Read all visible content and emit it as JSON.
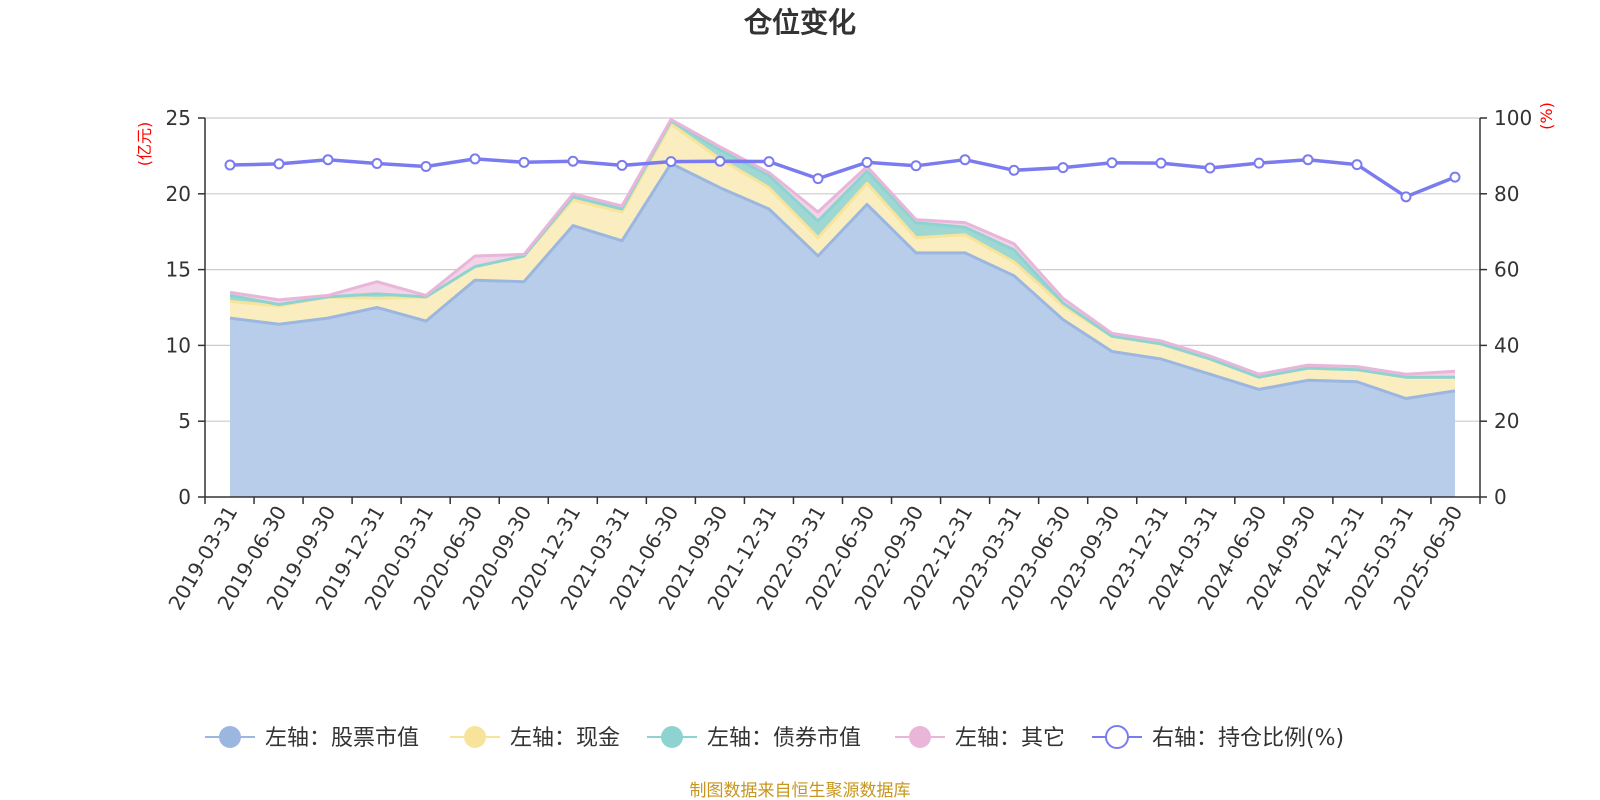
{
  "chart_data": {
    "type": "area",
    "title": "仓位变化",
    "source_text": "制图数据来自恒生聚源数据库",
    "left_axis": {
      "unit": "(亿元)",
      "ylim": [
        0,
        25
      ],
      "ticks": [
        0,
        5,
        10,
        15,
        20,
        25
      ]
    },
    "right_axis": {
      "unit": "(%)",
      "ylim": [
        0,
        100
      ],
      "ticks": [
        0,
        20,
        40,
        60,
        80,
        100
      ]
    },
    "categories": [
      "2019-03-31",
      "2019-06-30",
      "2019-09-30",
      "2019-12-31",
      "2020-03-31",
      "2020-06-30",
      "2020-09-30",
      "2020-12-31",
      "2021-03-31",
      "2021-06-30",
      "2021-09-30",
      "2021-12-31",
      "2022-03-31",
      "2022-06-30",
      "2022-09-30",
      "2022-12-31",
      "2023-03-31",
      "2023-06-30",
      "2023-09-30",
      "2023-12-31",
      "2024-03-31",
      "2024-06-30",
      "2024-09-30",
      "2024-12-31",
      "2025-03-31",
      "2025-06-30"
    ],
    "series": [
      {
        "name": "左轴：股票市值",
        "axis": "left",
        "color": "#9bb7e0",
        "fill": "#b8cdea",
        "values": [
          11.8,
          11.4,
          11.8,
          12.5,
          11.6,
          14.3,
          14.2,
          17.9,
          16.9,
          22.0,
          20.4,
          19.0,
          15.9,
          19.3,
          16.1,
          16.1,
          14.6,
          11.7,
          9.6,
          9.1,
          8.1,
          7.1,
          7.7,
          7.6,
          6.5,
          7.0
        ]
      },
      {
        "name": "左轴：现金",
        "axis": "left",
        "color": "#f7e49a",
        "fill": "#faedc0",
        "values": [
          1.1,
          1.2,
          1.4,
          0.6,
          1.6,
          0.9,
          1.7,
          1.7,
          1.9,
          2.6,
          1.9,
          1.4,
          1.2,
          1.4,
          1.0,
          1.2,
          0.9,
          0.9,
          1.0,
          1.0,
          1.0,
          0.8,
          0.8,
          0.8,
          1.4,
          0.9
        ]
      },
      {
        "name": "左轴：债券市值",
        "axis": "left",
        "color": "#8fd3d0",
        "fill": "#9fd7d3",
        "values": [
          0.4,
          0.1,
          0.0,
          0.3,
          0.0,
          0.0,
          0.0,
          0.2,
          0.2,
          0.2,
          0.6,
          0.8,
          1.1,
          0.8,
          1.0,
          0.5,
          0.8,
          0.2,
          0.0,
          0.0,
          0.0,
          0.0,
          0.0,
          0.0,
          0.0,
          0.0
        ]
      },
      {
        "name": "左轴：其它",
        "axis": "left",
        "color": "#e9b6da",
        "fill": "#f2d3e8",
        "values": [
          0.2,
          0.3,
          0.1,
          0.8,
          0.1,
          0.7,
          0.1,
          0.2,
          0.2,
          0.1,
          0.2,
          0.2,
          0.6,
          0.3,
          0.2,
          0.3,
          0.4,
          0.3,
          0.2,
          0.2,
          0.2,
          0.2,
          0.2,
          0.2,
          0.2,
          0.4
        ]
      },
      {
        "name": "右轴：持仓比例(%)",
        "axis": "right",
        "type": "line",
        "color": "#7b7bf0",
        "values": [
          87.6,
          87.9,
          89.0,
          88.0,
          87.2,
          89.2,
          88.3,
          88.6,
          87.5,
          88.5,
          88.6,
          88.5,
          84.0,
          88.3,
          87.4,
          89.0,
          86.2,
          86.9,
          88.2,
          88.1,
          86.8,
          88.1,
          89.0,
          87.7,
          79.2,
          84.4
        ]
      }
    ],
    "legend_position": "bottom"
  }
}
